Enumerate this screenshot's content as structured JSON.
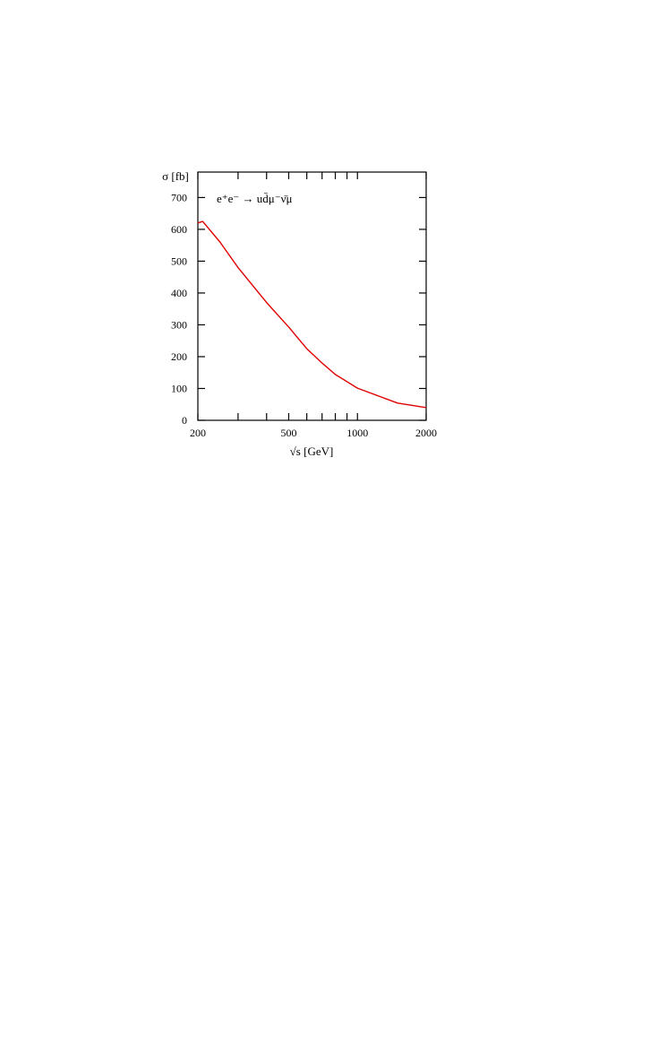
{
  "chart_data": {
    "type": "line",
    "y_label": "σ [fb]",
    "x_label": "√s [GeV]",
    "annotation": "e⁺e⁻ → ud̄μ⁻ν̄μ",
    "xlog": true,
    "xlim": [
      200,
      2000
    ],
    "xticks": [
      200,
      500,
      1000,
      2000
    ],
    "xminor_ticks": [
      300,
      400,
      600,
      700,
      800,
      900
    ],
    "ylim": [
      0,
      780
    ],
    "yticks": [
      0,
      100,
      200,
      300,
      400,
      500,
      600,
      700
    ],
    "x": [
      200,
      210,
      250,
      300,
      400,
      500,
      600,
      700,
      800,
      1000,
      1500,
      2000
    ],
    "series": [
      {
        "name": null,
        "color": "#e00000",
        "values": [
          620,
          625,
          560,
          480,
          370,
          293,
          225,
          180,
          144,
          101,
          54,
          40
        ]
      }
    ]
  }
}
